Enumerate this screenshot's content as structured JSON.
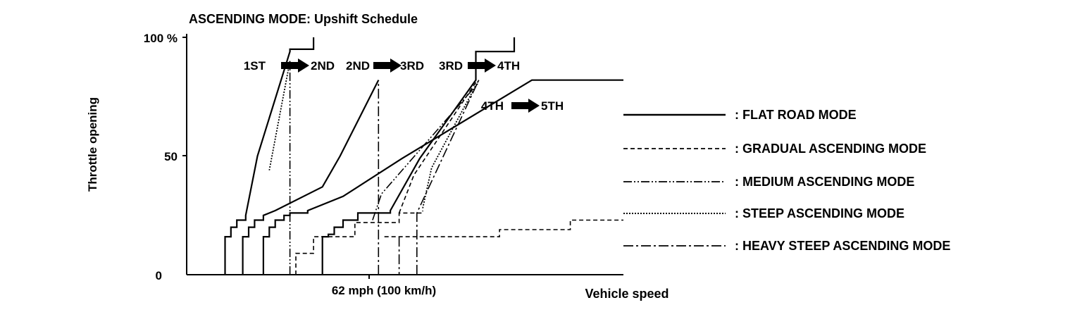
{
  "chart_data": {
    "type": "line",
    "title": "ASCENDING MODE: Upshift Schedule",
    "xlabel": "Vehicle speed",
    "ylabel": "Throttle opening",
    "y_ticks": [
      "100 %",
      "50",
      "0"
    ],
    "y_tick_values": [
      100,
      50,
      0
    ],
    "x_tick_label": "62 mph (100 km/h)",
    "x_tick_value": 62,
    "xlim": [
      0,
      148
    ],
    "ylim": [
      0,
      100
    ],
    "grid": false,
    "legend_position": "right",
    "shift_labels": [
      {
        "from": "1ST",
        "to": "2ND"
      },
      {
        "from": "2ND",
        "to": "3RD"
      },
      {
        "from": "3RD",
        "to": "4TH"
      },
      {
        "from": "4TH",
        "to": "5TH"
      }
    ],
    "series": [
      {
        "name": ": FLAT ROAD MODE",
        "style": "solid",
        "lines": [
          [
            [
              13,
              0
            ],
            [
              13,
              16
            ],
            [
              15,
              16
            ],
            [
              15,
              20
            ],
            [
              17,
              20
            ],
            [
              17,
              23
            ],
            [
              20,
              23
            ],
            [
              20,
              25
            ],
            [
              24,
              50
            ],
            [
              35,
              94
            ],
            [
              35,
              95
            ],
            [
              43,
              95
            ],
            [
              43,
              100
            ]
          ],
          [
            [
              19,
              0
            ],
            [
              19,
              16
            ],
            [
              21,
              16
            ],
            [
              21,
              20
            ],
            [
              23,
              20
            ],
            [
              23,
              23
            ],
            [
              26,
              23
            ],
            [
              26,
              25
            ],
            [
              30,
              27
            ],
            [
              46,
              37
            ],
            [
              52,
              50
            ],
            [
              65,
              82
            ]
          ],
          [
            [
              46,
              0
            ],
            [
              46,
              16
            ],
            [
              48,
              16
            ],
            [
              48,
              17
            ],
            [
              50,
              17
            ],
            [
              50,
              20
            ],
            [
              53,
              20
            ],
            [
              53,
              23
            ],
            [
              58,
              23
            ],
            [
              58,
              26
            ],
            [
              69,
              26
            ],
            [
              69,
              27
            ],
            [
              79,
              49
            ],
            [
              98,
              82
            ],
            [
              98,
              94
            ],
            [
              111,
              94
            ],
            [
              111,
              100
            ]
          ],
          [
            [
              26,
              0
            ],
            [
              26,
              16
            ],
            [
              28,
              16
            ],
            [
              28,
              20
            ],
            [
              30,
              20
            ],
            [
              30,
              23
            ],
            [
              33,
              23
            ],
            [
              33,
              25
            ],
            [
              35,
              25
            ],
            [
              35,
              26
            ],
            [
              41,
              26
            ],
            [
              41,
              27
            ],
            [
              53,
              33
            ],
            [
              73,
              49
            ],
            [
              117,
              82
            ],
            [
              148,
              82
            ]
          ]
        ]
      },
      {
        "name": ": GRADUAL ASCENDING MODE",
        "style": "dashed",
        "lines": [
          [
            [
              37,
              0
            ],
            [
              37,
              9
            ],
            [
              43,
              9
            ],
            [
              43,
              16
            ],
            [
              57,
              16
            ],
            [
              57,
              22
            ],
            [
              72,
              22
            ],
            [
              72,
              26
            ],
            [
              80,
              26
            ],
            [
              80,
              27
            ]
          ],
          [
            [
              72,
              26
            ],
            [
              77,
              42
            ],
            [
              98,
              81
            ]
          ],
          [
            [
              67,
              16
            ],
            [
              106,
              16
            ],
            [
              106,
              19
            ],
            [
              130,
              19
            ],
            [
              130,
              23
            ],
            [
              148,
              23
            ]
          ]
        ]
      },
      {
        "name": ": MEDIUM ASCENDING MODE",
        "style": "dashdotdot",
        "lines": [
          [
            [
              35,
              0
            ],
            [
              35,
              90
            ]
          ],
          [
            [
              63,
              23
            ],
            [
              66,
              34
            ],
            [
              99,
              81
            ]
          ]
        ]
      },
      {
        "name": ": STEEP ASCENDING MODE",
        "style": "dotted",
        "lines": [
          [
            [
              35,
              90
            ],
            [
              28,
              44
            ]
          ],
          [
            [
              80,
              28
            ],
            [
              83,
              45
            ],
            [
              99,
              82
            ]
          ]
        ]
      },
      {
        "name": ": HEAVY STEEP ASCENDING MODE",
        "style": "dashdot",
        "lines": [
          [
            [
              65,
              0
            ],
            [
              65,
              82
            ]
          ],
          [
            [
              72,
              16
            ],
            [
              72,
              8
            ],
            [
              72,
              0
            ]
          ],
          [
            [
              78,
              0
            ],
            [
              78,
              26
            ],
            [
              99,
              82
            ]
          ]
        ]
      }
    ]
  }
}
